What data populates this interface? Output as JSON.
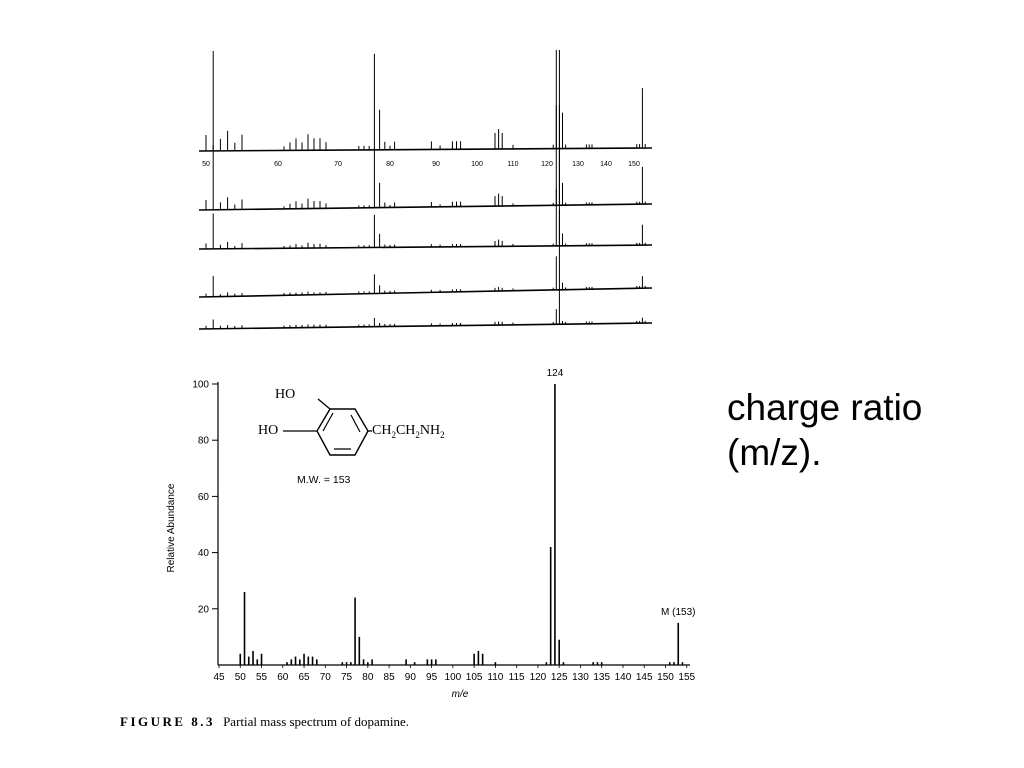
{
  "side_text": {
    "line1": "charge ratio",
    "line2": "(m/z)."
  },
  "caption": {
    "figure": "FIGURE 8.3",
    "text": "Partial mass spectrum of dopamine."
  },
  "structure": {
    "ho_top": "HO",
    "ho_left": "HO",
    "chain": "CH",
    "chain_sub1": "2",
    "chain_mid": "CH",
    "chain_sub2": "2",
    "chain_end": "NH",
    "chain_sub3": "2",
    "mw": "M.W. = 153"
  },
  "raw_traces": {
    "tick_labels": [
      "50",
      "60",
      "70",
      "80",
      "90",
      "100",
      "110",
      "120",
      "130",
      "140",
      "150"
    ],
    "tick_mz": [
      50,
      60,
      70,
      80,
      90,
      100,
      110,
      120,
      130,
      140,
      150
    ],
    "trace_scales": [
      1.0,
      0.62,
      0.34,
      0.2,
      0.09
    ]
  },
  "chart_data": {
    "type": "bar",
    "xlabel": "m/e",
    "ylabel": "Relative Abundance",
    "xlim": [
      45,
      156
    ],
    "ylim": [
      0,
      100
    ],
    "xticks": [
      45,
      50,
      55,
      60,
      65,
      70,
      75,
      80,
      85,
      90,
      95,
      100,
      105,
      110,
      115,
      120,
      125,
      130,
      135,
      140,
      145,
      150,
      155
    ],
    "xtick_labels": [
      "45",
      "50",
      "55",
      "60",
      "65",
      "70",
      "75",
      "80",
      "85",
      "90",
      "95",
      "100",
      "105",
      "110",
      "115",
      "120",
      "125",
      "130",
      "135",
      "140",
      "145",
      "150",
      "155"
    ],
    "yticks": [
      20,
      40,
      60,
      80,
      100
    ],
    "ytick_labels": [
      "20",
      "40",
      "60",
      "80",
      "100"
    ],
    "peaks": [
      {
        "mz": 50,
        "ab": 4
      },
      {
        "mz": 51,
        "ab": 26
      },
      {
        "mz": 52,
        "ab": 3
      },
      {
        "mz": 53,
        "ab": 5
      },
      {
        "mz": 54,
        "ab": 2
      },
      {
        "mz": 55,
        "ab": 4
      },
      {
        "mz": 61,
        "ab": 1
      },
      {
        "mz": 62,
        "ab": 2
      },
      {
        "mz": 63,
        "ab": 3
      },
      {
        "mz": 64,
        "ab": 2
      },
      {
        "mz": 65,
        "ab": 4
      },
      {
        "mz": 66,
        "ab": 3
      },
      {
        "mz": 67,
        "ab": 3
      },
      {
        "mz": 68,
        "ab": 2
      },
      {
        "mz": 74,
        "ab": 1
      },
      {
        "mz": 75,
        "ab": 1
      },
      {
        "mz": 76,
        "ab": 1
      },
      {
        "mz": 77,
        "ab": 24
      },
      {
        "mz": 78,
        "ab": 10
      },
      {
        "mz": 79,
        "ab": 2
      },
      {
        "mz": 80,
        "ab": 1
      },
      {
        "mz": 81,
        "ab": 2
      },
      {
        "mz": 89,
        "ab": 2
      },
      {
        "mz": 91,
        "ab": 1
      },
      {
        "mz": 94,
        "ab": 2
      },
      {
        "mz": 95,
        "ab": 2
      },
      {
        "mz": 96,
        "ab": 2
      },
      {
        "mz": 105,
        "ab": 4
      },
      {
        "mz": 106,
        "ab": 5
      },
      {
        "mz": 107,
        "ab": 4
      },
      {
        "mz": 110,
        "ab": 1
      },
      {
        "mz": 122,
        "ab": 1
      },
      {
        "mz": 123,
        "ab": 42
      },
      {
        "mz": 124,
        "ab": 100
      },
      {
        "mz": 125,
        "ab": 9
      },
      {
        "mz": 126,
        "ab": 1
      },
      {
        "mz": 133,
        "ab": 1
      },
      {
        "mz": 134,
        "ab": 1
      },
      {
        "mz": 135,
        "ab": 1
      },
      {
        "mz": 151,
        "ab": 1
      },
      {
        "mz": 152,
        "ab": 1
      },
      {
        "mz": 153,
        "ab": 15
      },
      {
        "mz": 154,
        "ab": 1
      }
    ],
    "annotations": [
      {
        "text": "124",
        "mz": 124
      },
      {
        "text": "M (153)",
        "mz": 153
      }
    ],
    "grid": false,
    "legend": "none"
  }
}
